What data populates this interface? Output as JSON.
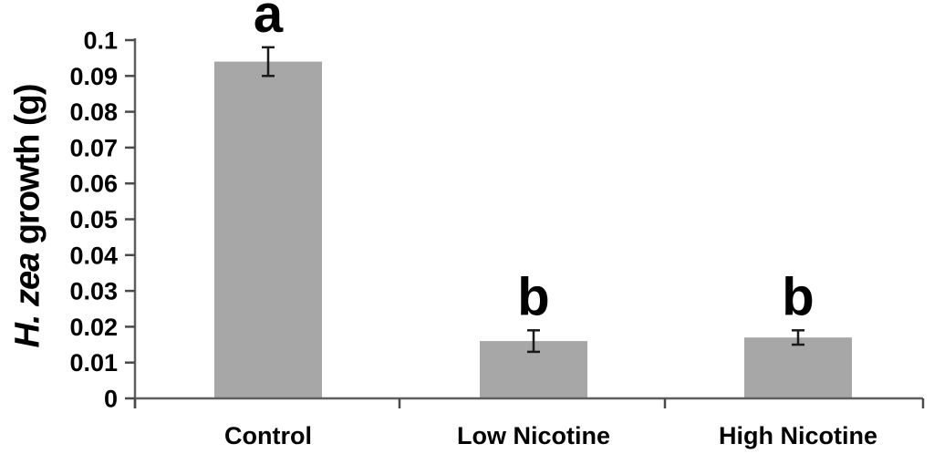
{
  "figure": {
    "background": "#ffffff"
  },
  "chart_data": {
    "type": "bar",
    "title": "",
    "xlabel": "",
    "ylabel": "H. zea growth (g)",
    "ylabel_italic_prefix": "H. zea",
    "ylabel_suffix": " growth (g)",
    "categories": [
      "Control",
      "Low Nicotine",
      "High Nicotine"
    ],
    "values": [
      0.094,
      0.016,
      0.017
    ],
    "error_bars": [
      0.004,
      0.003,
      0.002
    ],
    "significance_letters": [
      "a",
      "b",
      "b"
    ],
    "ylim": [
      0,
      0.1
    ],
    "yticks": [
      0,
      0.01,
      0.02,
      0.03,
      0.04,
      0.05,
      0.06,
      0.07,
      0.08,
      0.09,
      0.1
    ],
    "ytick_labels": [
      "0",
      "0.01",
      "0.02",
      "0.03",
      "0.04",
      "0.05",
      "0.06",
      "0.07",
      "0.08",
      "0.09",
      "0.1"
    ],
    "grid": false,
    "legend": false,
    "bar_color": "#a7a7a7",
    "error_bar_color": "#1a1a1a",
    "axis_color": "#5f5f5f",
    "tick_color": "#4a4a4a",
    "text_color": "#000000"
  }
}
